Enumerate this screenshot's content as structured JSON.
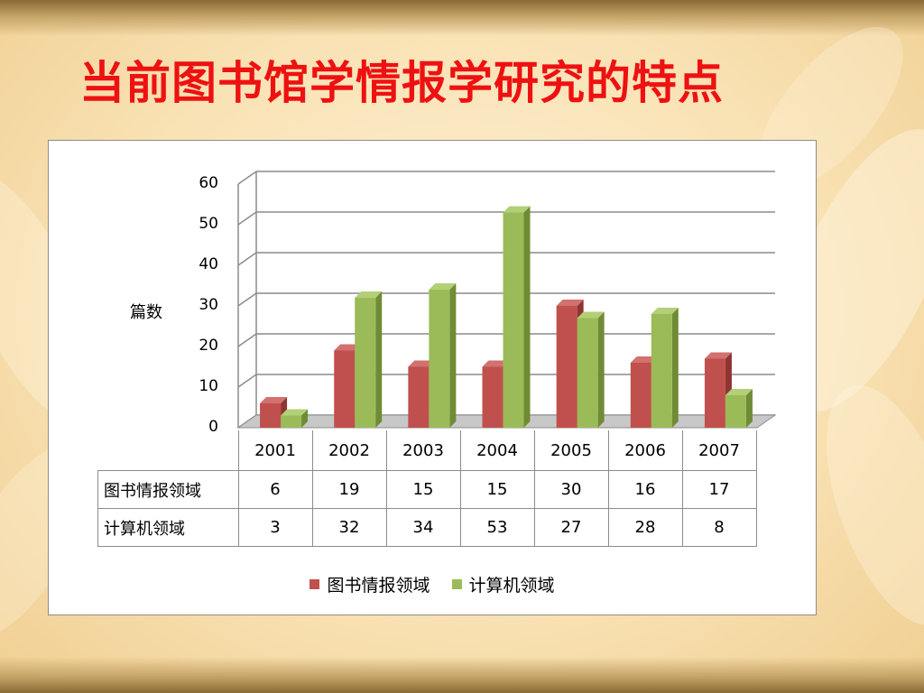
{
  "slide": {
    "title": "当前图书馆学情报学研究的特点"
  },
  "colors": {
    "series1": "#c0504d",
    "series1_top": "#d2716e",
    "series1_side": "#8f3431",
    "series2": "#9bbb59",
    "series2_top": "#b3cf78",
    "series2_side": "#6f8c35"
  },
  "chart_data": {
    "type": "bar",
    "ylabel": "篇数",
    "ylim": [
      0,
      60
    ],
    "yticks": [
      "0",
      "10",
      "20",
      "30",
      "40",
      "50",
      "60"
    ],
    "grid": true,
    "legend": "bottom",
    "categories": [
      "2001",
      "2002",
      "2003",
      "2004",
      "2005",
      "2006",
      "2007"
    ],
    "series": [
      {
        "name": "图书情报领域",
        "values": [
          6,
          19,
          15,
          15,
          30,
          16,
          17
        ]
      },
      {
        "name": "计算机领域",
        "values": [
          3,
          32,
          34,
          53,
          27,
          28,
          8
        ]
      }
    ]
  }
}
